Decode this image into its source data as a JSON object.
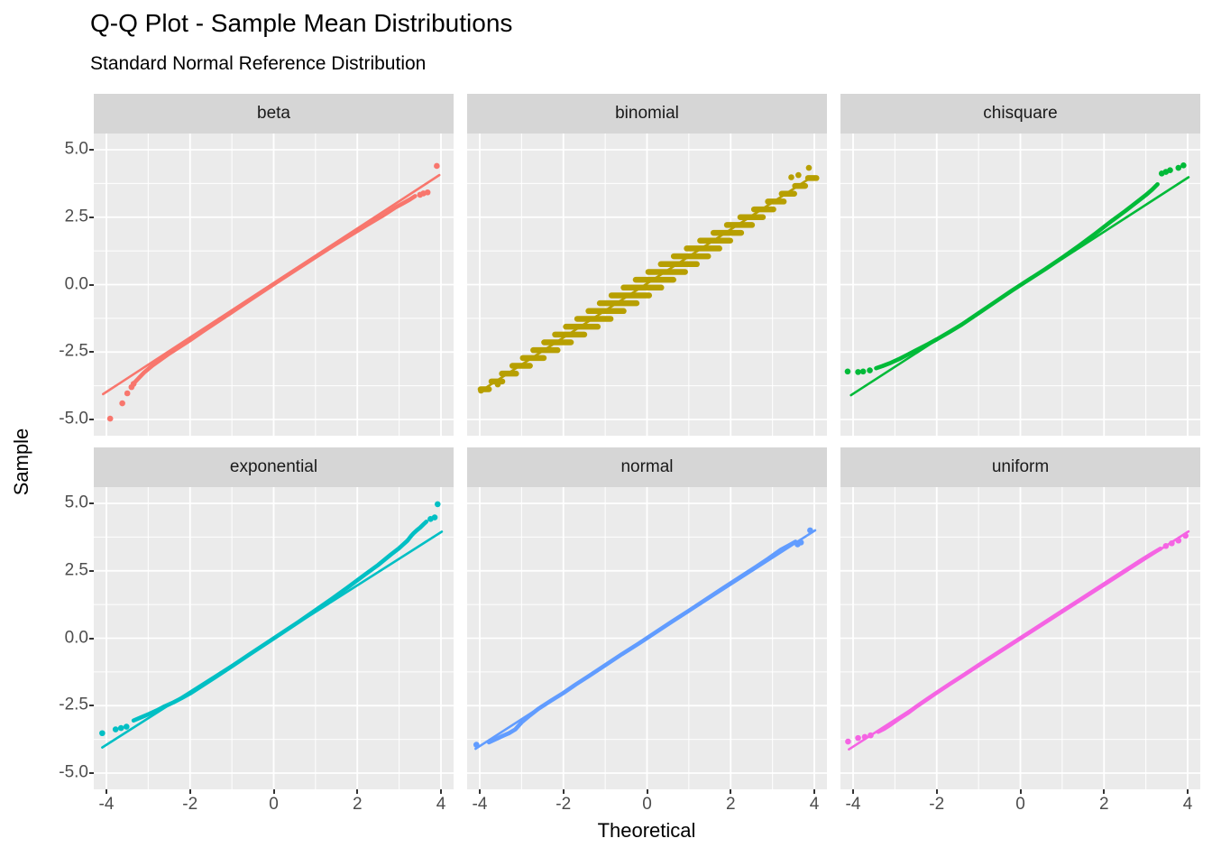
{
  "title": "Q-Q Plot - Sample Mean Distributions",
  "subtitle": "Standard Normal Reference Distribution",
  "axes": {
    "x_label": "Theoretical",
    "y_label": "Sample"
  },
  "chart_data": {
    "type": "scatter",
    "title": "Q-Q Plot - Sample Mean Distributions",
    "subtitle": "Standard Normal Reference Distribution",
    "xlabel": "Theoretical",
    "ylabel": "Sample",
    "x_range": [
      -4.3,
      4.3
    ],
    "y_range": [
      -5.6,
      5.6
    ],
    "x_ticks": {
      "values": [
        -4,
        -2,
        0,
        2,
        4
      ],
      "labels": [
        "-4",
        "-2",
        "0",
        "2",
        "4"
      ]
    },
    "y_ticks": {
      "values": [
        5,
        2.5,
        0,
        -2.5,
        -5
      ],
      "labels": [
        "5.0",
        "2.5",
        "0.0",
        "-2.5",
        "-5.0"
      ]
    },
    "x_minor": [
      -3,
      -1,
      1,
      3
    ],
    "y_minor": [
      -3.75,
      -1.25,
      1.25,
      3.75
    ],
    "grid": true,
    "legend": "none",
    "facet_layout": {
      "rows": 2,
      "cols": 3
    },
    "theme": {
      "panel_bg": "#ebebeb",
      "strip_bg": "#d6d6d6",
      "grid_color": "#ffffff",
      "tick_text_color": "#4d4d4d",
      "tick_mark_color": "#333333",
      "text_color": "#000000"
    },
    "facets": [
      {
        "label": "beta",
        "color": "#F8766D",
        "ref_line": [
          -4.08,
          -4.06,
          3.96,
          4.06
        ],
        "band": [
          [
            -3.32,
            -3.62
          ],
          [
            -3.2,
            -3.42
          ],
          [
            -3.1,
            -3.26
          ],
          [
            -2.9,
            -3.0
          ],
          [
            -2.7,
            -2.78
          ],
          [
            -2.5,
            -2.56
          ],
          [
            -2.2,
            -2.26
          ],
          [
            -2.0,
            -2.06
          ],
          [
            -1.7,
            -1.74
          ],
          [
            -1.4,
            -1.43
          ],
          [
            -1.0,
            -1.02
          ],
          [
            -0.6,
            -0.6
          ],
          [
            -0.2,
            -0.19
          ],
          [
            0.2,
            0.22
          ],
          [
            0.6,
            0.62
          ],
          [
            1.0,
            1.02
          ],
          [
            1.4,
            1.42
          ],
          [
            1.8,
            1.8
          ],
          [
            2.2,
            2.18
          ],
          [
            2.6,
            2.55
          ],
          [
            2.9,
            2.85
          ],
          [
            3.1,
            3.02
          ],
          [
            3.25,
            3.15
          ],
          [
            3.38,
            3.28
          ]
        ],
        "dots": [
          [
            -3.91,
            -4.97
          ],
          [
            -3.62,
            -4.4
          ],
          [
            -3.5,
            -4.03
          ],
          [
            -3.4,
            -3.8
          ],
          [
            -3.35,
            -3.68
          ],
          [
            3.5,
            3.33
          ],
          [
            3.58,
            3.38
          ],
          [
            3.68,
            3.42
          ],
          [
            3.9,
            4.4
          ]
        ]
      },
      {
        "label": "binomial",
        "color": "#B79F00",
        "ref_line": [
          -3.9,
          -3.87,
          3.92,
          3.97
        ],
        "segments": [
          [
            -3.98,
            -3.88,
            -3.78,
            -3.88
          ],
          [
            -3.72,
            -3.59,
            -3.46,
            -3.59
          ],
          [
            -3.47,
            -3.3,
            -3.13,
            -3.3
          ],
          [
            -3.22,
            -3.01,
            -2.8,
            -3.01
          ],
          [
            -2.97,
            -2.72,
            -2.47,
            -2.72
          ],
          [
            -2.72,
            -2.43,
            -2.14,
            -2.43
          ],
          [
            -2.46,
            -2.14,
            -1.82,
            -2.14
          ],
          [
            -2.2,
            -1.85,
            -1.5,
            -1.85
          ],
          [
            -1.94,
            -1.56,
            -1.18,
            -1.56
          ],
          [
            -1.67,
            -1.27,
            -0.87,
            -1.27
          ],
          [
            -1.4,
            -0.98,
            -0.56,
            -0.98
          ],
          [
            -1.13,
            -0.69,
            -0.25,
            -0.69
          ],
          [
            -0.85,
            -0.4,
            0.05,
            -0.4
          ],
          [
            -0.56,
            -0.11,
            0.34,
            -0.11
          ],
          [
            -0.27,
            0.18,
            0.63,
            0.18
          ],
          [
            0.03,
            0.47,
            0.91,
            0.47
          ],
          [
            0.33,
            0.76,
            1.19,
            0.76
          ],
          [
            0.64,
            1.05,
            1.46,
            1.05
          ],
          [
            0.95,
            1.34,
            1.73,
            1.34
          ],
          [
            1.27,
            1.63,
            1.99,
            1.63
          ],
          [
            1.59,
            1.92,
            2.25,
            1.92
          ],
          [
            1.91,
            2.21,
            2.51,
            2.21
          ],
          [
            2.23,
            2.5,
            2.77,
            2.5
          ],
          [
            2.56,
            2.79,
            3.02,
            2.79
          ],
          [
            2.89,
            3.08,
            3.27,
            3.08
          ],
          [
            3.22,
            3.37,
            3.52,
            3.37
          ],
          [
            3.54,
            3.66,
            3.78,
            3.66
          ],
          [
            3.85,
            3.95,
            4.05,
            3.95
          ]
        ],
        "dots": [
          [
            -3.97,
            -3.93
          ],
          [
            -3.57,
            -3.7
          ],
          [
            3.45,
            3.98
          ],
          [
            3.62,
            4.06
          ],
          [
            3.87,
            4.33
          ]
        ]
      },
      {
        "label": "chisquare",
        "color": "#00BA38",
        "ref_line": [
          -4.05,
          -4.1,
          4.02,
          3.98
        ],
        "band": [
          [
            -3.45,
            -3.1
          ],
          [
            -3.3,
            -3.02
          ],
          [
            -3.1,
            -2.9
          ],
          [
            -2.9,
            -2.76
          ],
          [
            -2.7,
            -2.6
          ],
          [
            -2.5,
            -2.44
          ],
          [
            -2.2,
            -2.2
          ],
          [
            -2.0,
            -2.03
          ],
          [
            -1.7,
            -1.76
          ],
          [
            -1.4,
            -1.48
          ],
          [
            -1.0,
            -1.06
          ],
          [
            -0.6,
            -0.64
          ],
          [
            -0.2,
            -0.22
          ],
          [
            0.2,
            0.18
          ],
          [
            0.6,
            0.58
          ],
          [
            1.0,
            1.0
          ],
          [
            1.4,
            1.44
          ],
          [
            1.8,
            1.9
          ],
          [
            2.2,
            2.38
          ],
          [
            2.5,
            2.72
          ],
          [
            2.8,
            3.08
          ],
          [
            3.0,
            3.32
          ],
          [
            3.15,
            3.52
          ],
          [
            3.28,
            3.72
          ]
        ],
        "dots": [
          [
            -4.13,
            -3.22
          ],
          [
            -3.88,
            -3.24
          ],
          [
            -3.76,
            -3.22
          ],
          [
            -3.6,
            -3.18
          ],
          [
            3.38,
            4.12
          ],
          [
            3.48,
            4.18
          ],
          [
            3.58,
            4.24
          ],
          [
            3.78,
            4.33
          ],
          [
            3.9,
            4.42
          ]
        ]
      },
      {
        "label": "exponential",
        "color": "#00BFC4",
        "ref_line": [
          -4.1,
          -4.05,
          4.02,
          3.95
        ],
        "band": [
          [
            -3.35,
            -3.05
          ],
          [
            -3.2,
            -2.95
          ],
          [
            -3.0,
            -2.82
          ],
          [
            -2.8,
            -2.68
          ],
          [
            -2.6,
            -2.52
          ],
          [
            -2.4,
            -2.38
          ],
          [
            -2.2,
            -2.22
          ],
          [
            -2.0,
            -2.05
          ],
          [
            -1.7,
            -1.75
          ],
          [
            -1.4,
            -1.45
          ],
          [
            -1.0,
            -1.04
          ],
          [
            -0.6,
            -0.62
          ],
          [
            -0.2,
            -0.21
          ],
          [
            0.2,
            0.2
          ],
          [
            0.6,
            0.61
          ],
          [
            1.0,
            1.04
          ],
          [
            1.4,
            1.47
          ],
          [
            1.8,
            1.92
          ],
          [
            2.2,
            2.38
          ],
          [
            2.5,
            2.72
          ],
          [
            2.8,
            3.1
          ],
          [
            3.0,
            3.34
          ],
          [
            3.1,
            3.48
          ],
          [
            3.2,
            3.62
          ],
          [
            3.28,
            3.78
          ],
          [
            3.35,
            3.9
          ],
          [
            3.42,
            4.0
          ],
          [
            3.5,
            4.1
          ],
          [
            3.58,
            4.22
          ],
          [
            3.65,
            4.32
          ]
        ],
        "dots": [
          [
            -4.1,
            -3.52
          ],
          [
            -3.78,
            -3.38
          ],
          [
            -3.65,
            -3.33
          ],
          [
            -3.52,
            -3.28
          ],
          [
            3.75,
            4.42
          ],
          [
            3.85,
            4.48
          ],
          [
            3.92,
            4.97
          ]
        ]
      },
      {
        "label": "normal",
        "color": "#619CFF",
        "ref_line": [
          -4.1,
          -4.1,
          4.02,
          4.0
        ],
        "band": [
          [
            -3.78,
            -3.86
          ],
          [
            -3.6,
            -3.73
          ],
          [
            -3.45,
            -3.62
          ],
          [
            -3.3,
            -3.52
          ],
          [
            -3.15,
            -3.38
          ],
          [
            -3.0,
            -3.12
          ],
          [
            -2.8,
            -2.86
          ],
          [
            -2.6,
            -2.62
          ],
          [
            -2.3,
            -2.32
          ],
          [
            -2.0,
            -2.03
          ],
          [
            -1.7,
            -1.71
          ],
          [
            -1.4,
            -1.41
          ],
          [
            -1.0,
            -1.0
          ],
          [
            -0.6,
            -0.59
          ],
          [
            -0.2,
            -0.2
          ],
          [
            0.2,
            0.21
          ],
          [
            0.6,
            0.62
          ],
          [
            1.0,
            1.02
          ],
          [
            1.4,
            1.43
          ],
          [
            1.8,
            1.84
          ],
          [
            2.2,
            2.24
          ],
          [
            2.6,
            2.64
          ],
          [
            2.9,
            2.95
          ],
          [
            3.2,
            3.28
          ],
          [
            3.4,
            3.45
          ],
          [
            3.55,
            3.58
          ]
        ],
        "dots": [
          [
            -4.08,
            -3.95
          ],
          [
            3.6,
            3.48
          ],
          [
            3.68,
            3.55
          ],
          [
            3.9,
            4.0
          ]
        ]
      },
      {
        "label": "uniform",
        "color": "#F564E3",
        "ref_line": [
          -4.1,
          -4.12,
          4.02,
          3.96
        ],
        "band": [
          [
            -3.4,
            -3.47
          ],
          [
            -3.25,
            -3.35
          ],
          [
            -3.1,
            -3.2
          ],
          [
            -2.9,
            -2.98
          ],
          [
            -2.7,
            -2.78
          ],
          [
            -2.5,
            -2.55
          ],
          [
            -2.2,
            -2.23
          ],
          [
            -2.0,
            -2.02
          ],
          [
            -1.7,
            -1.71
          ],
          [
            -1.4,
            -1.41
          ],
          [
            -1.0,
            -1.0
          ],
          [
            -0.6,
            -0.6
          ],
          [
            -0.2,
            -0.2
          ],
          [
            0.2,
            0.2
          ],
          [
            0.6,
            0.6
          ],
          [
            1.0,
            1.0
          ],
          [
            1.4,
            1.4
          ],
          [
            1.8,
            1.8
          ],
          [
            2.2,
            2.2
          ],
          [
            2.6,
            2.6
          ],
          [
            2.9,
            2.9
          ],
          [
            3.1,
            3.09
          ],
          [
            3.25,
            3.23
          ],
          [
            3.35,
            3.32
          ]
        ],
        "dots": [
          [
            -4.12,
            -3.83
          ],
          [
            -3.88,
            -3.7
          ],
          [
            -3.72,
            -3.66
          ],
          [
            -3.58,
            -3.6
          ],
          [
            3.48,
            3.42
          ],
          [
            3.62,
            3.52
          ],
          [
            3.78,
            3.62
          ],
          [
            3.95,
            3.8
          ]
        ]
      }
    ]
  }
}
